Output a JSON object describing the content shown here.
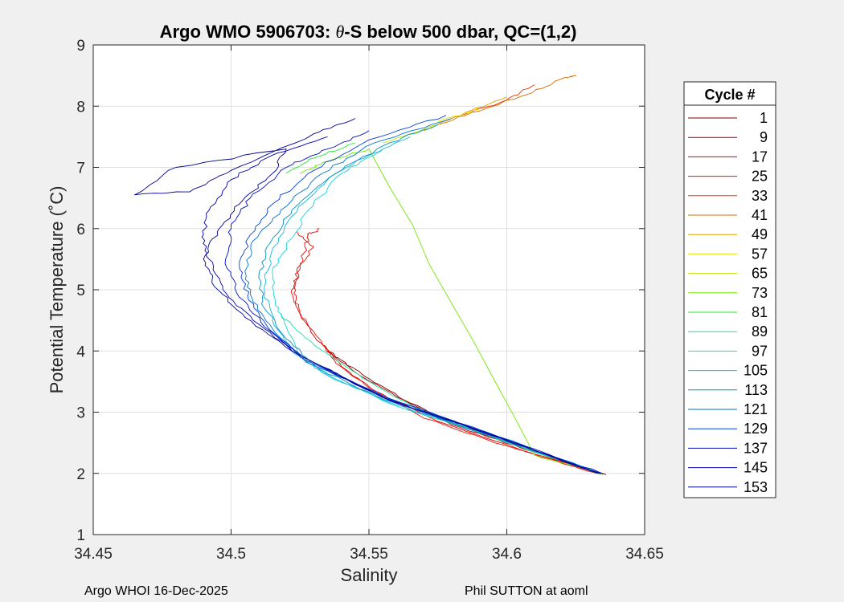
{
  "figure": {
    "footer_left": "Argo WHOI 16-Dec-2025",
    "footer_right": "Phil SUTTON at aoml"
  },
  "chart_data": {
    "type": "line",
    "title": "Argo WMO 5906703: θ-S below 500 dbar,  QC=(1,2)",
    "title_parts": {
      "pre": "Argo WMO 5906703: ",
      "theta": "θ",
      "post": "-S below 500 dbar,  QC=(1,2)"
    },
    "xlabel": "Salinity",
    "ylabel": "Potential Temperature (˚C)",
    "xlim": [
      34.45,
      34.65
    ],
    "ylim": [
      1,
      9
    ],
    "xticks": [
      "34.45",
      "34.5",
      "34.55",
      "34.6",
      "34.65"
    ],
    "yticks": [
      "1",
      "2",
      "3",
      "4",
      "5",
      "6",
      "7",
      "8",
      "9"
    ],
    "grid": true,
    "legend": {
      "title": "Cycle #",
      "placement": "outside-right",
      "entries": [
        {
          "label": "1",
          "color": "#800000"
        },
        {
          "label": "9",
          "color": "#b00000"
        },
        {
          "label": "17",
          "color": "#e00000"
        },
        {
          "label": "25",
          "color": "#f01000"
        },
        {
          "label": "33",
          "color": "#f03000"
        },
        {
          "label": "41",
          "color": "#d07000"
        },
        {
          "label": "49",
          "color": "#e0a000"
        },
        {
          "label": "57",
          "color": "#e8e000"
        },
        {
          "label": "65",
          "color": "#b8e800"
        },
        {
          "label": "73",
          "color": "#70e800"
        },
        {
          "label": "81",
          "color": "#20e830"
        },
        {
          "label": "89",
          "color": "#10e8a0"
        },
        {
          "label": "97",
          "color": "#10d8d8"
        },
        {
          "label": "105",
          "color": "#10b8e0"
        },
        {
          "label": "113",
          "color": "#0090c0"
        },
        {
          "label": "121",
          "color": "#0070d0"
        },
        {
          "label": "129",
          "color": "#0040d0"
        },
        {
          "label": "137",
          "color": "#0010c0"
        },
        {
          "label": "145",
          "color": "#0000b0"
        },
        {
          "label": "153",
          "color": "#000090"
        }
      ]
    },
    "series": [
      {
        "name": "1",
        "color": "#800000",
        "points": [
          [
            34.636,
            1.98
          ],
          [
            34.61,
            2.35
          ],
          [
            34.585,
            2.75
          ],
          [
            34.565,
            3.15
          ],
          [
            34.55,
            3.55
          ],
          [
            34.54,
            3.85
          ],
          [
            34.533,
            4.1
          ]
        ]
      },
      {
        "name": "9",
        "color": "#b00000",
        "points": [
          [
            34.635,
            1.99
          ],
          [
            34.606,
            2.4
          ],
          [
            34.58,
            2.8
          ],
          [
            34.56,
            3.25
          ],
          [
            34.545,
            3.65
          ],
          [
            34.535,
            4.0
          ]
        ]
      },
      {
        "name": "17",
        "color": "#e00000",
        "points": [
          [
            34.634,
            1.99
          ],
          [
            34.603,
            2.42
          ],
          [
            34.575,
            2.85
          ],
          [
            34.552,
            3.35
          ],
          [
            34.54,
            3.75
          ],
          [
            34.53,
            4.25
          ],
          [
            34.524,
            4.7
          ],
          [
            34.523,
            5.1
          ],
          [
            34.526,
            5.5
          ],
          [
            34.528,
            5.9
          ],
          [
            34.532,
            6.0
          ]
        ]
      },
      {
        "name": "25",
        "color": "#f01000",
        "points": [
          [
            34.633,
            2.0
          ],
          [
            34.6,
            2.45
          ],
          [
            34.57,
            2.9
          ],
          [
            34.55,
            3.4
          ],
          [
            34.538,
            3.8
          ],
          [
            34.532,
            4.2
          ],
          [
            34.525,
            4.6
          ],
          [
            34.522,
            5.0
          ],
          [
            34.525,
            5.4
          ],
          [
            34.53,
            5.7
          ],
          [
            34.524,
            5.95
          ]
        ]
      },
      {
        "name": "33",
        "color": "#f03000",
        "points": [
          [
            34.58,
            7.8
          ],
          [
            34.6,
            8.1
          ],
          [
            34.61,
            8.35
          ]
        ]
      },
      {
        "name": "41",
        "color": "#d07000",
        "points": [
          [
            34.575,
            7.7
          ],
          [
            34.595,
            8.0
          ],
          [
            34.61,
            8.25
          ],
          [
            34.62,
            8.45
          ],
          [
            34.625,
            8.5
          ]
        ]
      },
      {
        "name": "49",
        "color": "#e0a000",
        "points": [
          [
            34.57,
            7.6
          ],
          [
            34.585,
            7.9
          ],
          [
            34.6,
            8.15
          ]
        ]
      },
      {
        "name": "57",
        "color": "#e8e000",
        "points": [
          [
            34.575,
            7.75
          ],
          [
            34.59,
            7.95
          ]
        ]
      },
      {
        "name": "65",
        "color": "#b8e800",
        "points": [
          [
            34.555,
            7.4
          ],
          [
            34.575,
            7.7
          ]
        ]
      },
      {
        "name": "73",
        "color": "#70e800",
        "points": [
          [
            34.635,
            1.98
          ],
          [
            34.61,
            2.3
          ],
          [
            34.55,
            7.3
          ],
          [
            34.535,
            7.1
          ],
          [
            34.525,
            6.9
          ]
        ]
      },
      {
        "name": "81",
        "color": "#20e830",
        "points": [
          [
            34.545,
            7.4
          ],
          [
            34.53,
            7.15
          ],
          [
            34.52,
            6.9
          ]
        ]
      },
      {
        "name": "89",
        "color": "#10e8a0",
        "points": [
          [
            34.634,
            2.0
          ],
          [
            34.6,
            2.5
          ],
          [
            34.57,
            3.0
          ],
          [
            34.548,
            3.55
          ],
          [
            34.53,
            4.1
          ],
          [
            34.518,
            4.6
          ]
        ]
      },
      {
        "name": "97",
        "color": "#10d8d8",
        "points": [
          [
            34.628,
            2.1
          ],
          [
            34.595,
            2.6
          ],
          [
            34.56,
            3.1
          ],
          [
            34.54,
            3.5
          ],
          [
            34.525,
            3.9
          ],
          [
            34.52,
            4.4
          ],
          [
            34.516,
            4.8
          ],
          [
            34.515,
            5.3
          ],
          [
            34.52,
            5.7
          ],
          [
            34.528,
            6.3
          ],
          [
            34.54,
            6.9
          ],
          [
            34.555,
            7.3
          ]
        ]
      },
      {
        "name": "105",
        "color": "#10b8e0",
        "points": [
          [
            34.634,
            2.0
          ],
          [
            34.598,
            2.55
          ],
          [
            34.558,
            3.15
          ],
          [
            34.535,
            3.6
          ],
          [
            34.528,
            3.8
          ],
          [
            34.522,
            4.0
          ],
          [
            34.515,
            4.5
          ],
          [
            34.512,
            5.0
          ],
          [
            34.514,
            5.5
          ],
          [
            34.522,
            6.2
          ],
          [
            34.535,
            6.8
          ],
          [
            34.55,
            7.2
          ],
          [
            34.565,
            7.5
          ]
        ]
      },
      {
        "name": "113",
        "color": "#0090c0",
        "points": [
          [
            34.632,
            2.02
          ],
          [
            34.596,
            2.58
          ],
          [
            34.556,
            3.2
          ],
          [
            34.532,
            3.7
          ],
          [
            34.52,
            4.2
          ],
          [
            34.512,
            4.7
          ],
          [
            34.51,
            5.2
          ],
          [
            34.513,
            5.7
          ],
          [
            34.522,
            6.3
          ],
          [
            34.538,
            6.9
          ],
          [
            34.555,
            7.35
          ],
          [
            34.575,
            7.7
          ]
        ]
      },
      {
        "name": "121",
        "color": "#0070d0",
        "points": [
          [
            34.633,
            2.0
          ],
          [
            34.597,
            2.6
          ],
          [
            34.555,
            3.25
          ],
          [
            34.528,
            3.8
          ],
          [
            34.516,
            4.3
          ],
          [
            34.508,
            4.8
          ],
          [
            34.505,
            5.3
          ],
          [
            34.508,
            5.8
          ],
          [
            34.518,
            6.3
          ],
          [
            34.533,
            6.9
          ],
          [
            34.552,
            7.4
          ],
          [
            34.58,
            7.8
          ]
        ]
      },
      {
        "name": "129",
        "color": "#0040d0",
        "points": [
          [
            34.634,
            1.99
          ],
          [
            34.598,
            2.58
          ],
          [
            34.556,
            3.25
          ],
          [
            34.527,
            3.85
          ],
          [
            34.514,
            4.35
          ],
          [
            34.506,
            4.9
          ],
          [
            34.503,
            5.4
          ],
          [
            34.507,
            5.9
          ],
          [
            34.515,
            6.4
          ],
          [
            34.53,
            6.95
          ],
          [
            34.55,
            7.45
          ],
          [
            34.578,
            7.85
          ]
        ]
      },
      {
        "name": "137",
        "color": "#0010c0",
        "points": [
          [
            34.635,
            1.99
          ],
          [
            34.6,
            2.55
          ],
          [
            34.557,
            3.2
          ],
          [
            34.526,
            3.9
          ],
          [
            34.512,
            4.4
          ],
          [
            34.502,
            4.95
          ],
          [
            34.498,
            5.5
          ],
          [
            34.5,
            6.0
          ],
          [
            34.507,
            6.5
          ],
          [
            34.52,
            7.0
          ],
          [
            34.535,
            7.3
          ],
          [
            34.55,
            7.6
          ]
        ]
      },
      {
        "name": "145",
        "color": "#0000b0",
        "points": [
          [
            34.634,
            2.0
          ],
          [
            34.599,
            2.56
          ],
          [
            34.556,
            3.22
          ],
          [
            34.524,
            3.95
          ],
          [
            34.508,
            4.5
          ],
          [
            34.497,
            5.0
          ],
          [
            34.492,
            5.5
          ],
          [
            34.49,
            5.9
          ],
          [
            34.492,
            6.3
          ],
          [
            34.5,
            6.8
          ],
          [
            34.515,
            7.2
          ],
          [
            34.535,
            7.5
          ]
        ]
      },
      {
        "name": "153",
        "color": "#000090",
        "points": [
          [
            34.633,
            2.0
          ],
          [
            34.598,
            2.57
          ],
          [
            34.555,
            3.24
          ],
          [
            34.522,
            4.0
          ],
          [
            34.505,
            4.55
          ],
          [
            34.494,
            5.05
          ],
          [
            34.49,
            5.5
          ],
          [
            34.495,
            5.95
          ],
          [
            34.503,
            6.4
          ],
          [
            34.515,
            6.9
          ],
          [
            34.52,
            7.3
          ],
          [
            34.48,
            7.0
          ],
          [
            34.465,
            6.55
          ],
          [
            34.485,
            6.6
          ],
          [
            34.5,
            6.95
          ],
          [
            34.53,
            7.55
          ],
          [
            34.545,
            7.8
          ]
        ]
      }
    ]
  }
}
